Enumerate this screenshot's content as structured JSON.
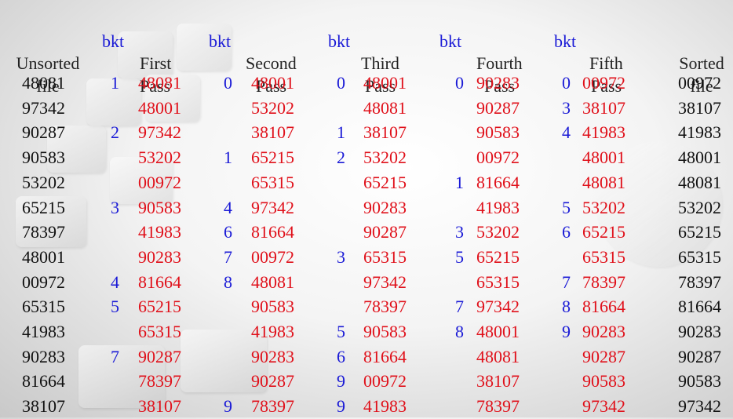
{
  "headers": {
    "unsorted": [
      "Unsorted",
      "file"
    ],
    "first": [
      "First",
      "Pass"
    ],
    "second": [
      "Second",
      "Pass"
    ],
    "third": [
      "Third",
      "Pass"
    ],
    "fourth": [
      "Fourth",
      "Pass"
    ],
    "fifth": [
      "Fifth",
      "Pass"
    ],
    "sorted": [
      "Sorted",
      "file"
    ],
    "bkt_label": "bkt"
  },
  "unsorted": [
    "48081",
    "97342",
    "90287",
    "90583",
    "53202",
    "65215",
    "78397",
    "48001",
    "00972",
    "65315",
    "41983",
    "90283",
    "81664",
    "38107"
  ],
  "pass1": {
    "bkt": [
      "1",
      "",
      "2",
      "",
      "",
      "3",
      "",
      "",
      "4",
      "5",
      "",
      "7",
      "",
      ""
    ],
    "vals": [
      "48081",
      "48001",
      "97342",
      "53202",
      "00972",
      "90583",
      "41983",
      "90283",
      "81664",
      "65215",
      "65315",
      "90287",
      "78397",
      "38107"
    ]
  },
  "pass2": {
    "bkt": [
      "0",
      "",
      "",
      "1",
      "",
      "4",
      "6",
      "7",
      "8",
      "",
      "",
      "",
      "",
      "9"
    ],
    "vals": [
      "48001",
      "53202",
      "38107",
      "65215",
      "65315",
      "97342",
      "81664",
      "00972",
      "48081",
      "90583",
      "41983",
      "90283",
      "90287",
      "78397"
    ]
  },
  "pass3": {
    "bkt": [
      "0",
      "",
      "1",
      "2",
      "",
      "",
      "",
      "3",
      "",
      "",
      "5",
      "6",
      "9",
      "9"
    ],
    "vals": [
      "48001",
      "48081",
      "38107",
      "53202",
      "65215",
      "90283",
      "90287",
      "65315",
      "97342",
      "78397",
      "90583",
      "81664",
      "00972",
      "41983"
    ]
  },
  "pass4": {
    "bkt": [
      "0",
      "",
      "",
      "",
      "1",
      "",
      "3",
      "5",
      "",
      "7",
      "8",
      "",
      "",
      ""
    ],
    "vals": [
      "90283",
      "90287",
      "90583",
      "00972",
      "81664",
      "41983",
      "53202",
      "65215",
      "65315",
      "97342",
      "48001",
      "48081",
      "38107",
      "78397"
    ]
  },
  "pass5": {
    "bkt": [
      "0",
      "3",
      "4",
      "",
      "",
      "5",
      "6",
      "",
      "7",
      "8",
      "9",
      "",
      "",
      ""
    ],
    "vals": [
      "00972",
      "38107",
      "41983",
      "48001",
      "48081",
      "53202",
      "65215",
      "65315",
      "78397",
      "81664",
      "90283",
      "90287",
      "90583",
      "97342"
    ]
  },
  "sorted": [
    "00972",
    "38107",
    "41983",
    "48001",
    "48081",
    "53202",
    "65215",
    "65315",
    "78397",
    "81664",
    "90283",
    "90287",
    "90583",
    "97342"
  ]
}
